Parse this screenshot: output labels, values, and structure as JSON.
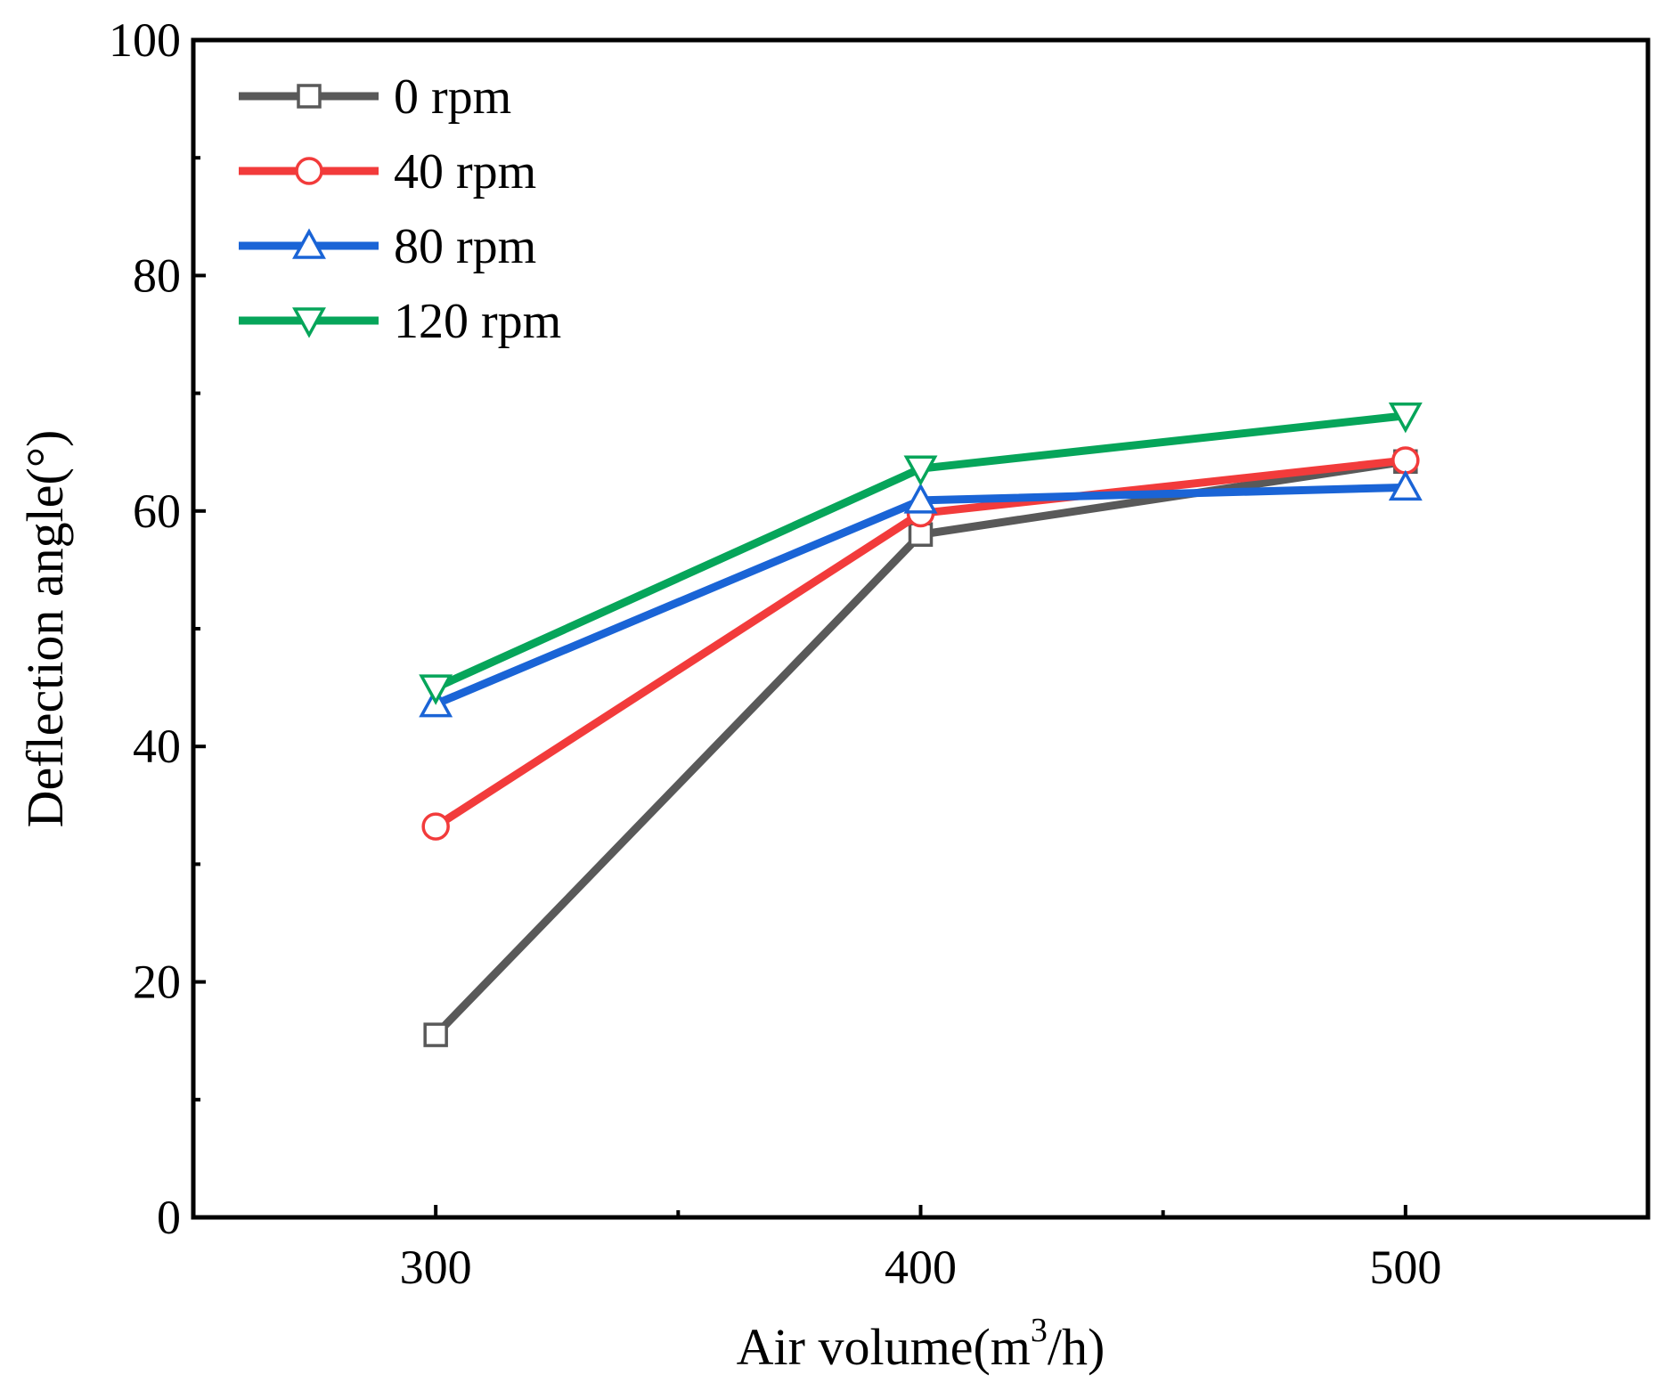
{
  "chart_data": {
    "type": "line",
    "title": "",
    "xlabel_prefix": "Air volume(m",
    "xlabel_sup": "3",
    "xlabel_suffix": "/h)",
    "ylabel": "Deflection angle(°)",
    "x": [
      300,
      400,
      500
    ],
    "xlim": [
      250,
      550
    ],
    "ylim": [
      0,
      100
    ],
    "x_ticks": [
      300,
      400,
      500
    ],
    "x_tick_labels": [
      "300",
      "400",
      "500"
    ],
    "x_minor_ticks": [
      350,
      450
    ],
    "y_ticks": [
      0,
      20,
      40,
      60,
      80,
      100
    ],
    "y_tick_labels": [
      "0",
      "20",
      "40",
      "60",
      "80",
      "100"
    ],
    "y_minor_ticks": [
      10,
      30,
      50,
      70,
      90
    ],
    "grid": false,
    "legend_position": "top-left",
    "series": [
      {
        "name": "0 rpm",
        "color": "#595959",
        "marker": "square",
        "values": [
          15.5,
          58.0,
          64.2
        ]
      },
      {
        "name": "40 rpm",
        "color": "#f23b3b",
        "marker": "circle",
        "values": [
          33.2,
          59.8,
          64.3
        ]
      },
      {
        "name": "80 rpm",
        "color": "#1a64d6",
        "marker": "triangle-up",
        "values": [
          43.6,
          60.9,
          62.0
        ]
      },
      {
        "name": "120 rpm",
        "color": "#06a55a",
        "marker": "triangle-down",
        "values": [
          45.0,
          63.6,
          68.1
        ]
      }
    ]
  }
}
